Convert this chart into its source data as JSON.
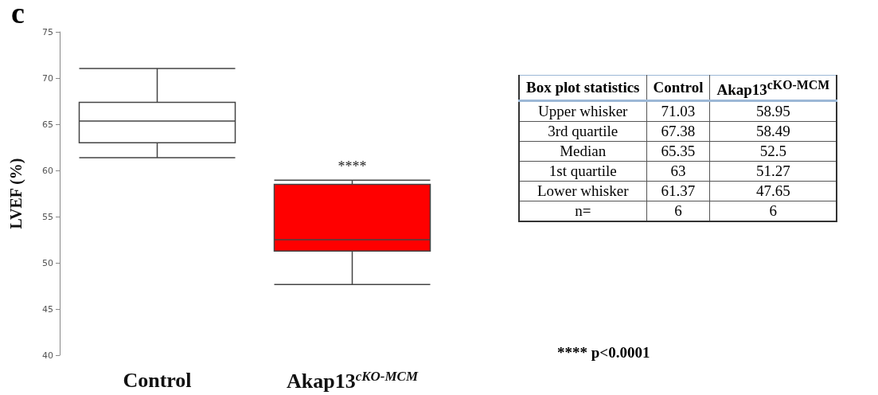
{
  "chart_data": {
    "type": "box",
    "ylabel": "LVEF (%)",
    "categories": [
      "Control",
      "Akap13$^{cKO-MCM}$"
    ],
    "boxes": [
      {
        "low": 61.37,
        "q1": 63,
        "median": 65.35,
        "q3": 67.38,
        "high": 71.03
      },
      {
        "low": 47.65,
        "q1": 51.27,
        "median": 52.5,
        "q3": 58.49,
        "high": 58.95
      }
    ],
    "colors": [
      "#ffffff",
      "#ff0000"
    ],
    "ylim": [
      40,
      75
    ],
    "yticks": [
      40,
      45,
      50,
      55,
      60,
      65,
      70,
      75
    ],
    "grid": false,
    "data_labels": true,
    "annotations": [
      "c",
      "****",
      "**** p<0.0001",
      "Box plot statistics",
      "Upper whisker",
      "71.03",
      "58.95",
      "3rd quartile",
      "67.38",
      "58.49",
      "Median",
      "65.35",
      "52.5",
      "1st quartile",
      "63",
      "51.27",
      "Lower whisker",
      "61.37",
      "47.65",
      "n=",
      "6",
      "6"
    ]
  }
}
